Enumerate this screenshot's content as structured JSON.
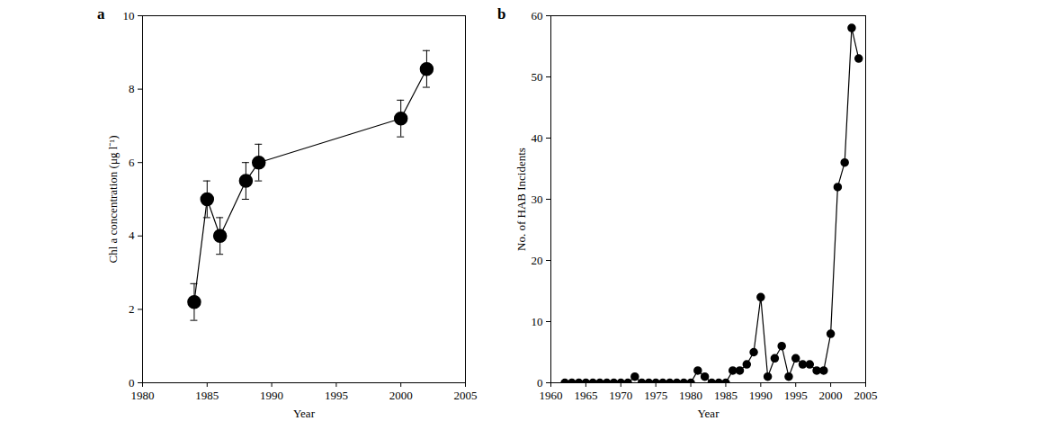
{
  "chart_data": [
    {
      "type": "line",
      "title": "a",
      "x_label": "Year",
      "y_label": "Chl a concentration (μg l⁻¹)",
      "x": [
        1984,
        1985,
        1986,
        1988,
        1989,
        2000,
        2002
      ],
      "values": [
        2.2,
        5.0,
        4.0,
        5.5,
        6.0,
        7.2,
        8.55
      ],
      "errors": [
        0.5,
        0.5,
        0.5,
        0.5,
        0.5,
        0.5,
        0.5
      ],
      "color": "#000000",
      "marker": "circle",
      "line_style": "solid",
      "xlim": [
        1980,
        2005
      ],
      "xticks": [
        1980,
        1985,
        1990,
        1995,
        2000,
        2005
      ],
      "ylim": [
        0,
        10
      ],
      "yticks": [
        0,
        2,
        4,
        6,
        8,
        10
      ],
      "grid": false
    },
    {
      "type": "line",
      "title": "b",
      "x_label": "Year",
      "y_label": "No. of HAB Incidents",
      "x": [
        1962,
        1963,
        1964,
        1965,
        1966,
        1967,
        1968,
        1969,
        1970,
        1971,
        1972,
        1973,
        1974,
        1975,
        1976,
        1977,
        1978,
        1979,
        1980,
        1981,
        1982,
        1983,
        1984,
        1985,
        1986,
        1987,
        1988,
        1989,
        1990,
        1991,
        1992,
        1993,
        1994,
        1995,
        1996,
        1997,
        1998,
        1999,
        2000,
        2001,
        2002,
        2003,
        2004
      ],
      "values": [
        0,
        0,
        0,
        0,
        0,
        0,
        0,
        0,
        0,
        0,
        1,
        0,
        0,
        0,
        0,
        0,
        0,
        0,
        0,
        2,
        1,
        0,
        0,
        0,
        2,
        2,
        3,
        5,
        14,
        1,
        4,
        6,
        1,
        4,
        3,
        3,
        2,
        2,
        8,
        32,
        36,
        58,
        53
      ],
      "color": "#000000",
      "marker": "circle",
      "line_style": "solid",
      "xlim": [
        1960,
        2005
      ],
      "xticks": [
        1960,
        1965,
        1970,
        1975,
        1980,
        1985,
        1990,
        1995,
        2000,
        2005
      ],
      "ylim": [
        0,
        60
      ],
      "yticks": [
        0,
        10,
        20,
        30,
        40,
        50,
        60
      ],
      "grid": false
    }
  ]
}
